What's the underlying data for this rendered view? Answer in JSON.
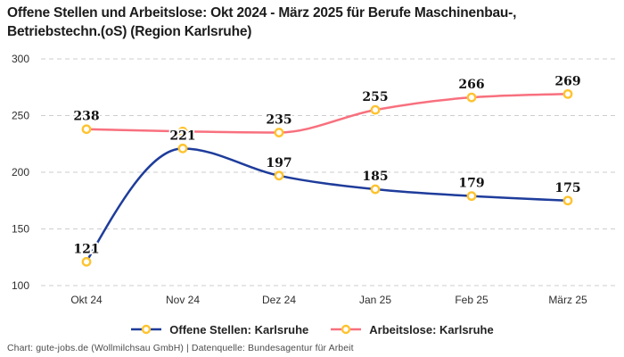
{
  "title": {
    "line1": "Offene Stellen und Arbeitslose: Okt 2024 - März 2025 für Berufe Maschinenbau-,",
    "line2": "Betriebstechn.(oS) (Region Karlsruhe)"
  },
  "legend": {
    "items": [
      {
        "label": "Offene Stellen: Karlsruhe",
        "color": "#1e3c9b"
      },
      {
        "label": "Arbeitslose: Karlsruhe",
        "color": "#f8707e"
      }
    ]
  },
  "footer": {
    "text": "Chart: gute-jobs.de (Wollmilchsau GmbH) | Datenquelle: Bundesagentur für Arbeit"
  },
  "colors": {
    "blue_series": "#1e3c9b",
    "pink_series": "#f8707e",
    "marker_ring": "#fec32f",
    "marker_fill": "#ffffff",
    "gridline": "#cdcdcd",
    "axis_text": "#2e2e2e",
    "point_label": "#111111"
  },
  "chart_data": {
    "type": "line",
    "categories": [
      "Okt 24",
      "Nov 24",
      "Dez 24",
      "Jan 25",
      "Feb 25",
      "März 25"
    ],
    "series": [
      {
        "name": "Offene Stellen: Karlsruhe",
        "color": "#1e3c9b",
        "values": [
          121,
          221,
          197,
          185,
          179,
          175
        ],
        "labels": [
          "121",
          "221",
          "197",
          "185",
          "179",
          "175"
        ]
      },
      {
        "name": "Arbeitslose: Karlsruhe",
        "color": "#f8707e",
        "values": [
          238,
          236,
          235,
          255,
          266,
          269
        ],
        "labels": [
          "238",
          "",
          "235",
          "255",
          "266",
          "269"
        ]
      }
    ],
    "marker": {
      "ring": "#fec32f",
      "fill": "#ffffff"
    },
    "ylim": [
      100,
      300
    ],
    "y_ticks": [
      100,
      150,
      200,
      250,
      300
    ],
    "grid": "dashed-horizontal",
    "legend_position": "bottom"
  }
}
